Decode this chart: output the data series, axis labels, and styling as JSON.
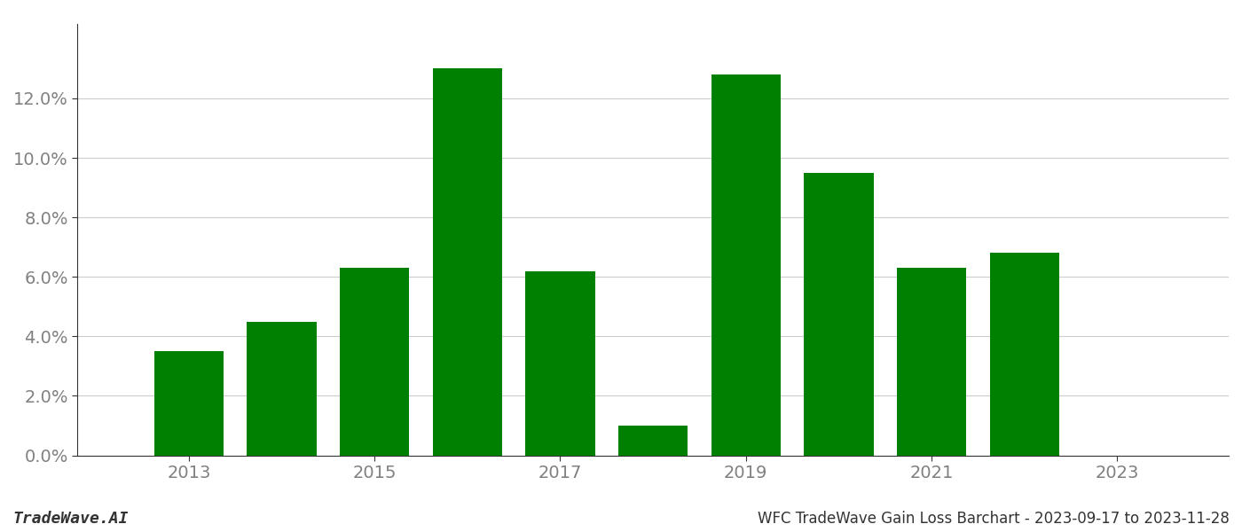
{
  "years": [
    2013,
    2014,
    2015,
    2016,
    2017,
    2018,
    2019,
    2020,
    2021,
    2022,
    2023
  ],
  "values": [
    0.035,
    0.045,
    0.063,
    0.13,
    0.062,
    0.01,
    0.128,
    0.095,
    0.063,
    0.068,
    null
  ],
  "bar_color": "#008000",
  "background_color": "#ffffff",
  "grid_color": "#cccccc",
  "axis_color": "#333333",
  "text_color": "#808080",
  "footer_text_color": "#333333",
  "title": "WFC TradeWave Gain Loss Barchart - 2023-09-17 to 2023-11-28",
  "watermark": "TradeWave.AI",
  "ylim": [
    0,
    0.145
  ],
  "yticks": [
    0.0,
    0.02,
    0.04,
    0.06,
    0.08,
    0.1,
    0.12
  ],
  "xtick_positions": [
    2013,
    2015,
    2017,
    2019,
    2021,
    2023
  ],
  "xlim_left": 2011.8,
  "xlim_right": 2024.2,
  "title_fontsize": 12,
  "watermark_fontsize": 13,
  "tick_fontsize": 14,
  "bar_width": 0.75
}
